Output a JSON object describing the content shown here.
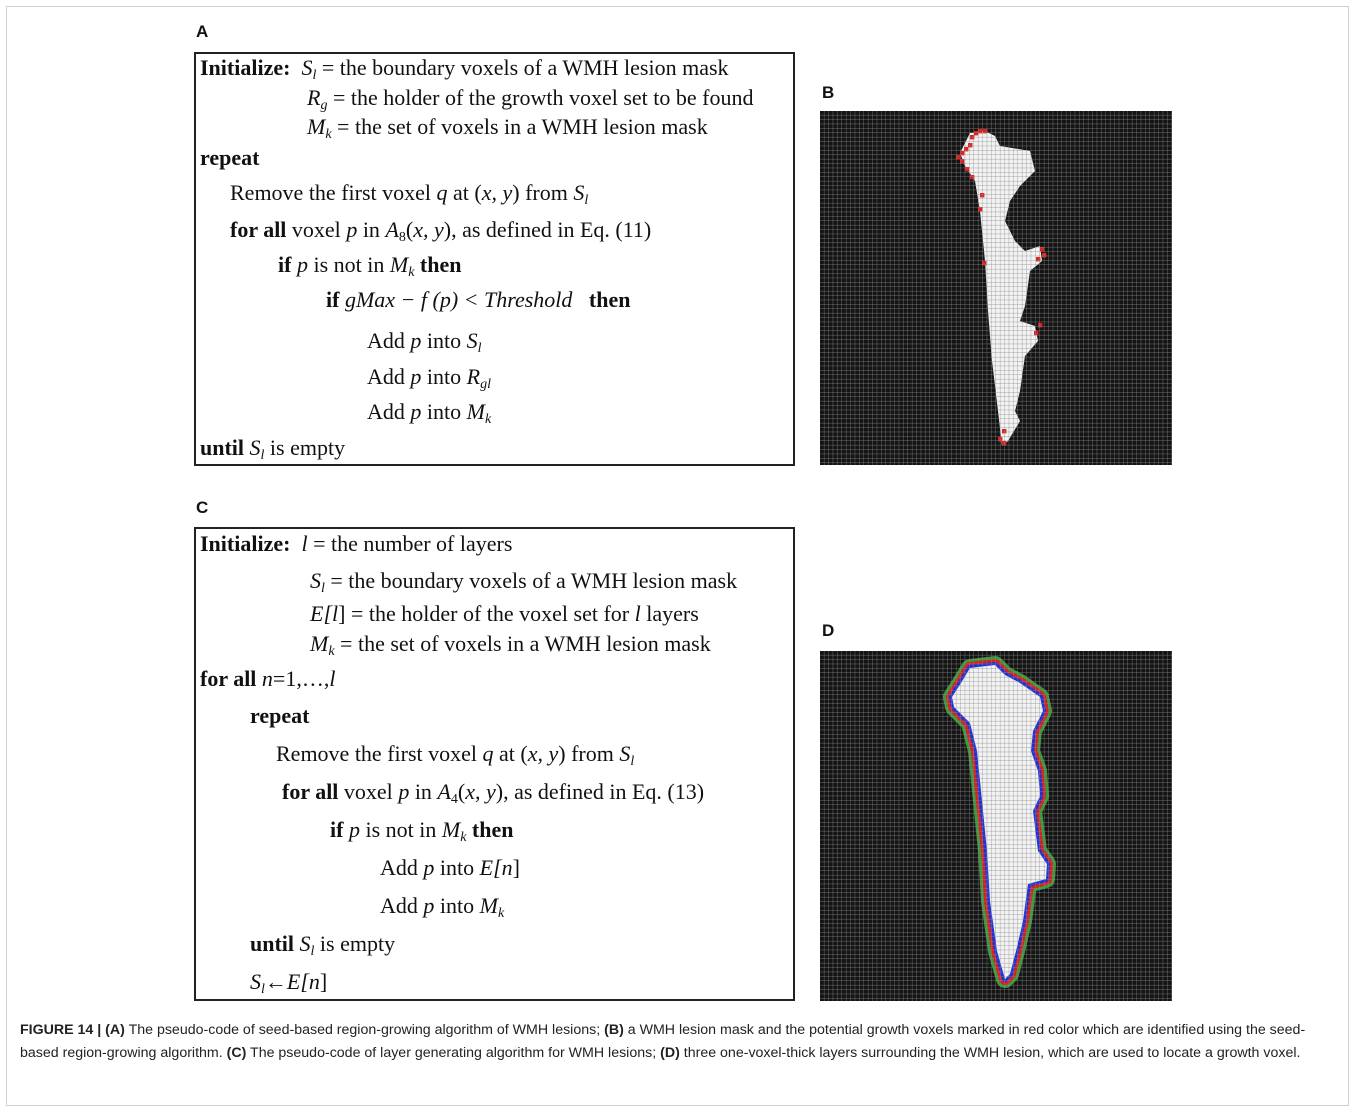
{
  "figure": {
    "panel_labels": {
      "a": "A",
      "b": "B",
      "c": "C",
      "d": "D"
    },
    "code_a": [
      [
        "Initialize:",
        "S",
        "l",
        "= the boundary voxels of a WMH lesion mask"
      ],
      [
        "R",
        "g",
        "= the holder of the growth voxel set to be found"
      ],
      [
        "M",
        "k",
        "= the set of voxels in a WMH lesion mask"
      ],
      [
        "repeat"
      ],
      [
        "Remove the first voxel",
        "q",
        "at (",
        "x, y",
        ") from",
        "S",
        "l"
      ],
      [
        "for all",
        "voxel",
        "p",
        "in",
        "A",
        "8",
        "(",
        "x, y",
        "), as defined in Eq. (11)"
      ],
      [
        "if",
        "p",
        "is not in",
        "M",
        "k",
        "then"
      ],
      [
        "if",
        "gMax − f (p) < Threshold",
        "then"
      ],
      [
        "Add",
        "p",
        "into",
        "S",
        "l"
      ],
      [
        "Add",
        "p",
        "into",
        "R",
        "gl"
      ],
      [
        "Add",
        "p",
        "into",
        "M",
        "k"
      ],
      [
        "until",
        "S",
        "l",
        "is empty"
      ]
    ],
    "code_c": [
      [
        "Initialize:",
        "l",
        "= the number of layers"
      ],
      [
        "S",
        "l",
        "= the boundary voxels of a WMH lesion mask"
      ],
      [
        "E[",
        "l",
        "] = the holder of the voxel set for",
        "l",
        "layers"
      ],
      [
        "M",
        "k",
        "= the set of voxels in a WMH lesion mask"
      ],
      [
        "for all",
        "n",
        "=1,…,",
        "l"
      ],
      [
        "repeat"
      ],
      [
        "Remove the first voxel",
        "q",
        "at (",
        "x, y",
        ") from",
        "S",
        "l"
      ],
      [
        "for all",
        "voxel",
        "p",
        "in",
        "A",
        "4",
        "(",
        "x, y",
        "), as defined in Eq. (13)"
      ],
      [
        "if",
        "p",
        "is not in",
        "M",
        "k",
        "then"
      ],
      [
        "Add",
        "p",
        "into",
        "E[",
        "n",
        "]"
      ],
      [
        "Add",
        "p",
        "into",
        "M",
        "k"
      ],
      [
        "until",
        "S",
        "l",
        "is empty"
      ],
      [
        "S",
        "l",
        "←",
        "E[",
        "n",
        "]"
      ]
    ],
    "caption": [
      "FIGURE 14 | (A)",
      "The pseudo-code of seed-based region-growing algorithm of WMH lesions;",
      "(B)",
      "a WMH lesion mask and the potential growth voxels marked in red color which are identified using the seed-based region-growing algorithm.",
      "(C)",
      "The pseudo-code of layer generating algorithm for WMH lesions;",
      "(D)",
      "three one-voxel-thick layers surrounding the WMH lesion, which are used to locate a growth voxel."
    ]
  }
}
